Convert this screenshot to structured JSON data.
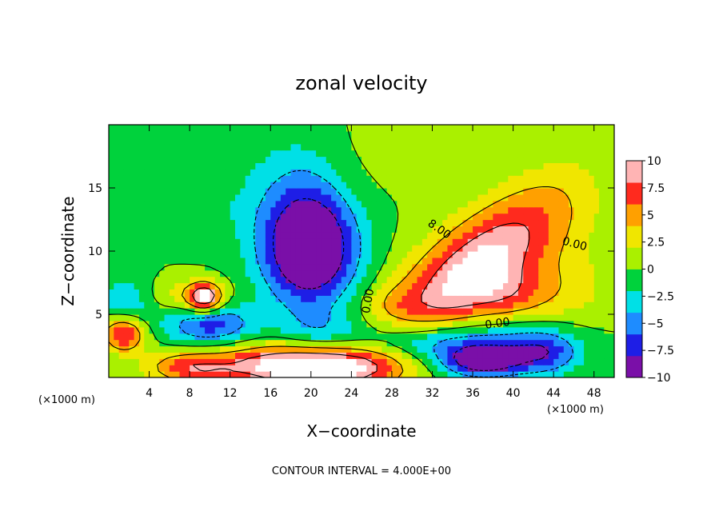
{
  "chart_data": {
    "type": "heatmap",
    "title": "zonal velocity",
    "xlabel": "X−coordinate",
    "ylabel": "Z−coordinate",
    "x_unit_left": "(×1000 m)",
    "x_unit_right": "(×1000 m)",
    "xlim": [
      0,
      50
    ],
    "ylim": [
      0,
      20
    ],
    "x_ticks": [
      4,
      8,
      12,
      16,
      20,
      24,
      28,
      32,
      36,
      40,
      44,
      48
    ],
    "y_ticks": [
      5,
      10,
      15
    ],
    "colorbar": {
      "range": [
        -10,
        10
      ],
      "ticks": [
        {
          "value": 10,
          "label": "10"
        },
        {
          "value": 7.5,
          "label": "7.5"
        },
        {
          "value": 5,
          "label": "5"
        },
        {
          "value": 2.5,
          "label": "2.5"
        },
        {
          "value": 0,
          "label": "0"
        },
        {
          "value": -2.5,
          "label": "−2.5"
        },
        {
          "value": -5,
          "label": "−5"
        },
        {
          "value": -7.5,
          "label": "−7.5"
        },
        {
          "value": -10,
          "label": "−10"
        }
      ],
      "stops": [
        "#7a0fa8",
        "#1e1ee6",
        "#1e8cff",
        "#00e0e6",
        "#00d23c",
        "#aaf000",
        "#f0e600",
        "#ffa000",
        "#ff2a1e",
        "#ffb4b4"
      ]
    },
    "features": [
      {
        "x": 20,
        "y": 10,
        "sx": 3.2,
        "sy": 3.0,
        "a": -11
      },
      {
        "x": 19,
        "y": 13,
        "sx": 3.5,
        "sy": 4.0,
        "a": -4
      },
      {
        "x": 10,
        "y": 4.2,
        "sx": 3.0,
        "sy": 1.2,
        "a": -7
      },
      {
        "x": 2,
        "y": 6,
        "sx": 2.0,
        "sy": 1.5,
        "a": -4
      },
      {
        "x": 35,
        "y": 2.5,
        "sx": 6.0,
        "sy": 1.5,
        "a": -6
      },
      {
        "x": 43,
        "y": 2,
        "sx": 2.5,
        "sy": 1.2,
        "a": -6
      },
      {
        "x": 21,
        "y": 3.5,
        "sx": 3.0,
        "sy": 1.3,
        "a": -3
      },
      {
        "x": 3,
        "y": 17,
        "sx": 8.0,
        "sy": 3.0,
        "a": -1.5
      },
      {
        "x": 10,
        "y": 13,
        "sx": 3.0,
        "sy": 2.0,
        "a": -1
      },
      {
        "x": 30,
        "y": 3,
        "sx": 4.0,
        "sy": 1.0,
        "a": -3
      },
      {
        "x": 36,
        "y": 8.5,
        "sx": 7.0,
        "sy": 2.6,
        "a": 11,
        "rot": -0.55
      },
      {
        "x": 40,
        "y": 6.5,
        "sx": 3.0,
        "sy": 1.5,
        "a": 4
      },
      {
        "x": 19,
        "y": 1.0,
        "sx": 6.0,
        "sy": 1.2,
        "a": 11
      },
      {
        "x": 22,
        "y": 0.7,
        "sx": 5.0,
        "sy": 1.0,
        "a": 4
      },
      {
        "x": 8,
        "y": 0.8,
        "sx": 3.0,
        "sy": 0.9,
        "a": 6
      },
      {
        "x": 1.5,
        "y": 3.5,
        "sx": 1.5,
        "sy": 1.0,
        "a": 9
      },
      {
        "x": 9.5,
        "y": 6.3,
        "sx": 1.2,
        "sy": 0.8,
        "a": 11
      },
      {
        "x": 7,
        "y": 6.5,
        "sx": 3.0,
        "sy": 1.0,
        "a": 3
      },
      {
        "x": 37,
        "y": 1.3,
        "sx": 2.5,
        "sy": 0.8,
        "a": -9
      },
      {
        "x": 46,
        "y": 7,
        "sx": 3.0,
        "sy": 2.0,
        "a": 2
      },
      {
        "x": 45,
        "y": 12,
        "sx": 4.0,
        "sy": 4.0,
        "a": 1
      },
      {
        "x": 25,
        "y": 17,
        "sx": 3.0,
        "sy": 3.0,
        "a": 0.8
      },
      {
        "x": 28,
        "y": 6,
        "sx": 2.0,
        "sy": 1.0,
        "a": 1.5
      }
    ],
    "contour_labels": [
      {
        "text": "8.00",
        "x": 32.5,
        "y": 11.5,
        "angle": 35
      },
      {
        "text": "0.00",
        "x": 46,
        "y": 10.3,
        "angle": 15
      },
      {
        "text": "0.00",
        "x": 38.5,
        "y": 4.0,
        "angle": -8
      },
      {
        "text": "0.00",
        "x": 26,
        "y": 6.0,
        "angle": -80
      }
    ]
  },
  "footer": {
    "contour_interval": "CONTOUR INTERVAL = 4.000E+00"
  }
}
